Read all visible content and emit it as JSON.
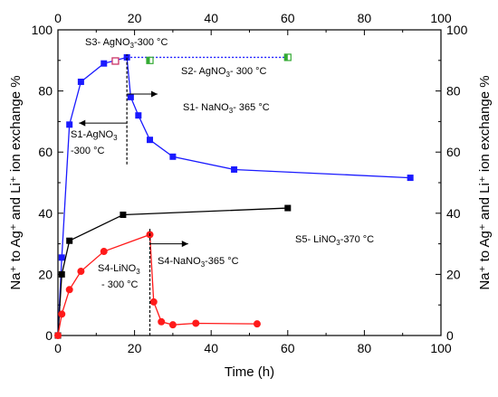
{
  "chart_data": {
    "type": "scatter",
    "title": "",
    "xlabel": "Time (h)",
    "ylabel": "Na⁺ to Ag⁺ and Li⁺ ion exchange %",
    "xlim": [
      0,
      100
    ],
    "ylim": [
      0,
      100
    ],
    "xticks": [
      "0",
      "20",
      "40",
      "60",
      "80",
      "100"
    ],
    "yticks": [
      "0",
      "20",
      "40",
      "60",
      "80",
      "100"
    ],
    "grid": false,
    "series": [
      {
        "color": "#1a1aff",
        "marker": "square",
        "line": "solid",
        "x": [
          0,
          1,
          3,
          6,
          12,
          18,
          19,
          21,
          24,
          30,
          46,
          92
        ],
        "y": [
          0,
          25.5,
          69,
          83,
          89,
          91,
          78,
          72,
          64,
          58.5,
          54.3,
          51.6
        ]
      },
      {
        "color": "#1a1aff",
        "marker": "none",
        "line": "dotted",
        "x": [
          18,
          60
        ],
        "y": [
          91,
          91
        ]
      },
      {
        "color": "#000000",
        "marker": "square",
        "line": "solid",
        "x": [
          0,
          1,
          3,
          17,
          60
        ],
        "y": [
          0,
          20,
          31,
          39.5,
          41.7
        ]
      },
      {
        "color": "#ff1a1a",
        "marker": "circle",
        "line": "solid",
        "x": [
          0,
          1,
          3,
          6,
          12,
          24,
          25,
          27,
          30,
          36,
          52
        ],
        "y": [
          0,
          7,
          15,
          21,
          27.5,
          33,
          11,
          4.5,
          3.5,
          4,
          3.8
        ]
      },
      {
        "color": "#cc3366",
        "marker": "hollow-square",
        "line": "none",
        "x": [
          15
        ],
        "y": [
          89.8
        ]
      },
      {
        "color": "#33aa33",
        "marker": "half-square",
        "line": "none",
        "x": [
          24,
          60
        ],
        "y": [
          90,
          91
        ]
      }
    ],
    "annotations": [
      {
        "text": "S3- AgNO",
        "sub": "3",
        "tail": "-300 °C"
      },
      {
        "text": "S2- AgNO",
        "sub": "3",
        "tail": "- 300 °C"
      },
      {
        "text": "S1- NaNO",
        "sub": "3",
        "tail": "- 365 °C"
      },
      {
        "text": "S1-AgNO",
        "sub": "3",
        "tail": ""
      },
      {
        "text": "-300 °C",
        "sub": "",
        "tail": ""
      },
      {
        "text": "S5- LiNO",
        "sub": "3",
        "tail": "-370 °C"
      },
      {
        "text": "S4-NaNO",
        "sub": "3",
        "tail": "-365 °C"
      },
      {
        "text": "S4-LiNO",
        "sub": "3",
        "tail": ""
      },
      {
        "text": "- 300 °C",
        "sub": "",
        "tail": ""
      }
    ],
    "guides": [
      {
        "x": 18,
        "y": [
          56,
          92
        ]
      },
      {
        "x": 24,
        "y": [
          0,
          35
        ]
      }
    ]
  }
}
